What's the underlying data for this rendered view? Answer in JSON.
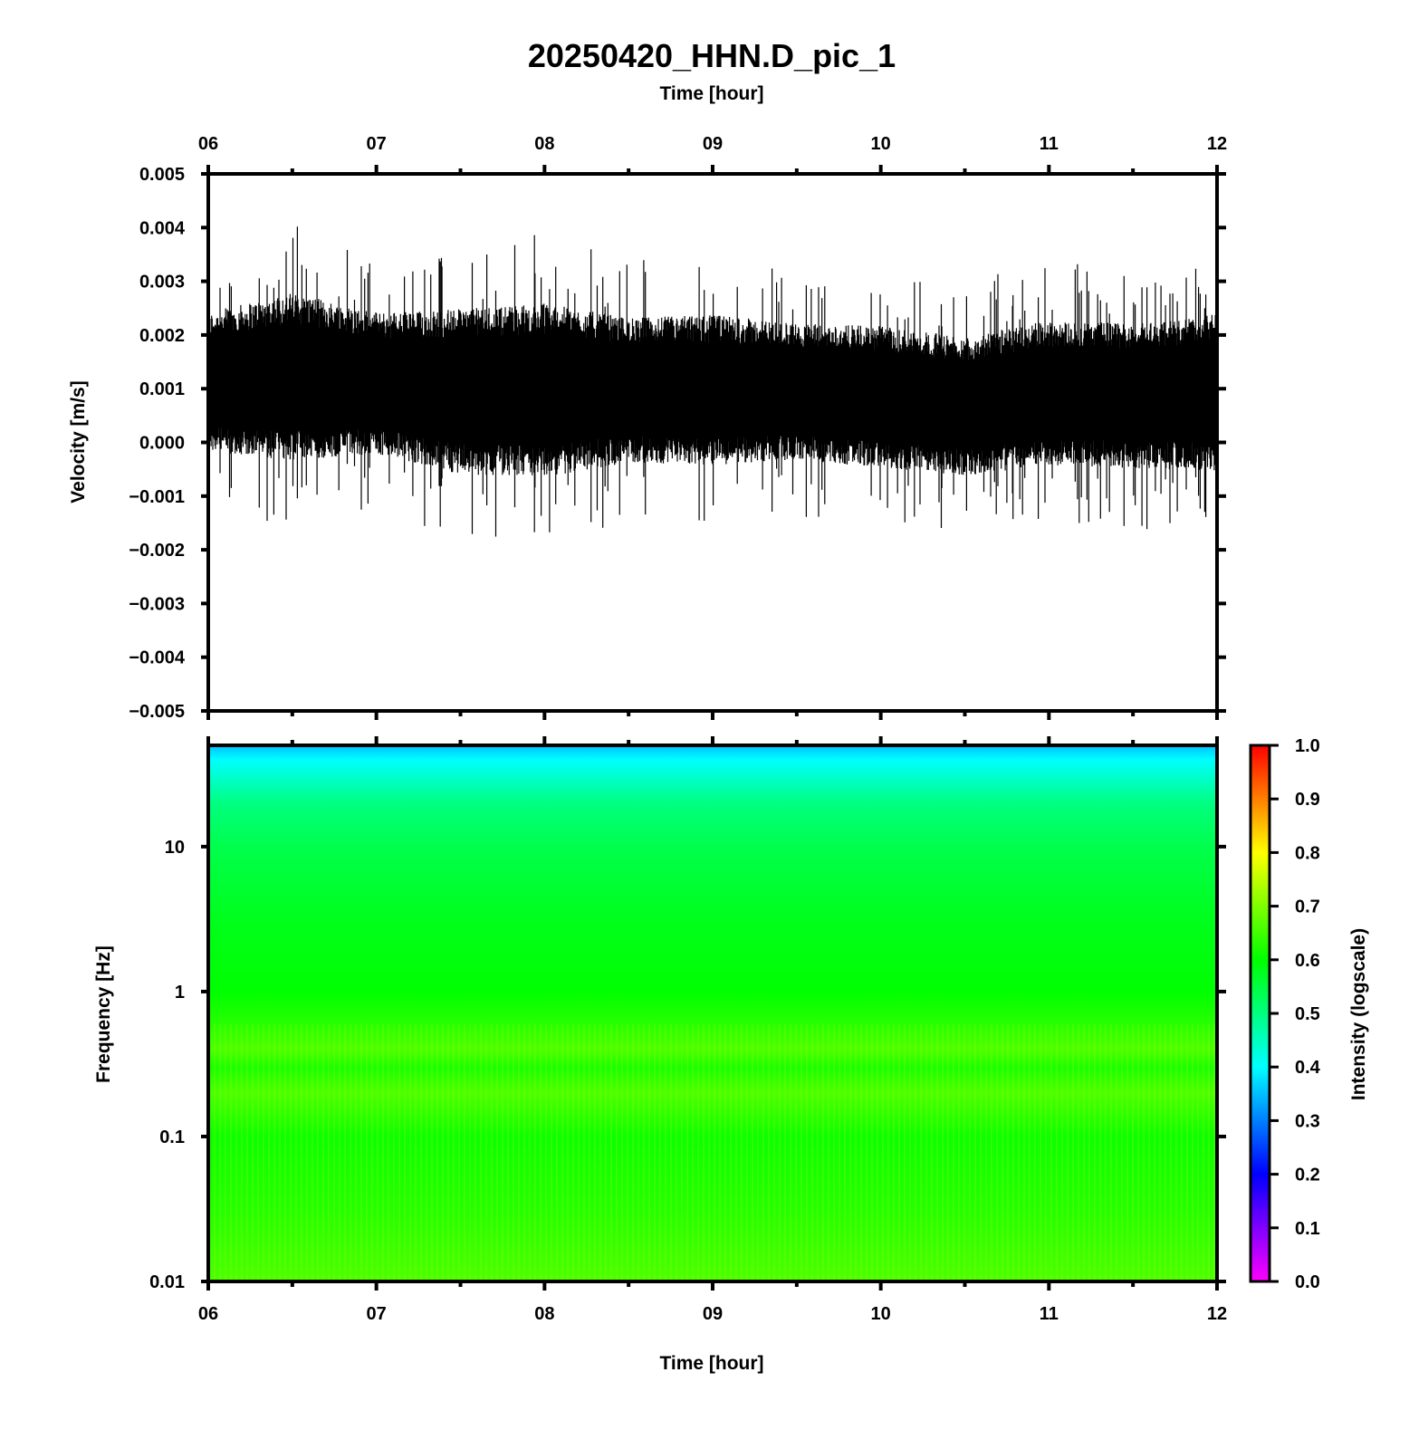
{
  "chart_data": [
    {
      "type": "line",
      "title": "20250420_HHN.D_pic_1",
      "xlabel_top": "Time [hour]",
      "ylabel": "Velocity [m/s]",
      "x_ticks": [
        "06",
        "07",
        "08",
        "09",
        "10",
        "11",
        "12"
      ],
      "xlim": [
        6,
        12
      ],
      "y_ticks": [
        "0.005",
        "0.004",
        "0.003",
        "0.002",
        "0.001",
        "0.000",
        "−0.001",
        "−0.002",
        "−0.003",
        "−0.004",
        "−0.005"
      ],
      "ylim": [
        -0.005,
        0.005
      ],
      "series": [
        {
          "x": [
            6.0,
            6.5,
            7.0,
            7.5,
            8.0,
            8.5,
            9.0,
            9.5,
            10.0,
            10.5,
            11.0,
            11.5,
            12.0
          ],
          "y_mean": [
            0.0011,
            0.0012,
            0.0011,
            0.001,
            0.001,
            0.001,
            0.0009,
            0.001,
            0.0009,
            0.0007,
            0.0009,
            0.0009,
            0.0009
          ],
          "y_max": [
            0.0035,
            0.0041,
            0.0035,
            0.0037,
            0.0039,
            0.0034,
            0.0036,
            0.0032,
            0.0032,
            0.003,
            0.0034,
            0.0033,
            0.0036
          ],
          "y_min": [
            -0.0012,
            -0.0016,
            -0.0013,
            -0.0019,
            -0.002,
            -0.0015,
            -0.0015,
            -0.0014,
            -0.0016,
            -0.0017,
            -0.0015,
            -0.0016,
            -0.0017
          ],
          "color": "#000000"
        }
      ],
      "grid": false
    },
    {
      "type": "heatmap",
      "xlabel": "Time [hour]",
      "ylabel": "Frequency [Hz]",
      "x_ticks": [
        "06",
        "07",
        "08",
        "09",
        "10",
        "11",
        "12"
      ],
      "xlim": [
        6,
        12
      ],
      "y_ticks": [
        "10",
        "1",
        "0.1",
        "0.01"
      ],
      "ylim": [
        0.01,
        50
      ],
      "yscale": "log",
      "intensity_profile": {
        "frequency_hz": [
          50,
          40,
          30,
          20,
          10,
          3,
          1,
          0.6,
          0.4,
          0.3,
          0.2,
          0.1,
          0.03,
          0.01
        ],
        "intensity": [
          0.35,
          0.4,
          0.44,
          0.5,
          0.54,
          0.58,
          0.6,
          0.63,
          0.66,
          0.62,
          0.66,
          0.61,
          0.63,
          0.66
        ]
      },
      "colorbar": {
        "label": "Intensity (logscale)",
        "ticks": [
          "1.0",
          "0.9",
          "0.8",
          "0.7",
          "0.6",
          "0.5",
          "0.4",
          "0.3",
          "0.2",
          "0.1",
          "0.0"
        ],
        "range": [
          0,
          1
        ],
        "colors": [
          "#ff00ff",
          "#0000ff",
          "#00ffff",
          "#00ff00",
          "#ffff00",
          "#ff0000"
        ]
      }
    }
  ]
}
